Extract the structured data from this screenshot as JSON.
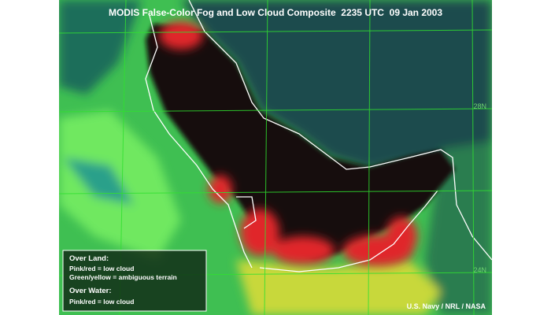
{
  "title": "MODIS False-Color Fog and Low Cloud Composite  2235 UTC  09 Jan 2003",
  "legend": {
    "land_heading": "Over Land:",
    "land_items": [
      "Pink/red = low cloud",
      "Green/yellow = ambiguous terrain"
    ],
    "water_heading": "Over Water:",
    "water_items": [
      "Pink/red = low cloud"
    ]
  },
  "grid_labels": [
    "28N",
    "24N"
  ],
  "credit": "U.S. Navy / NRL / NASA"
}
